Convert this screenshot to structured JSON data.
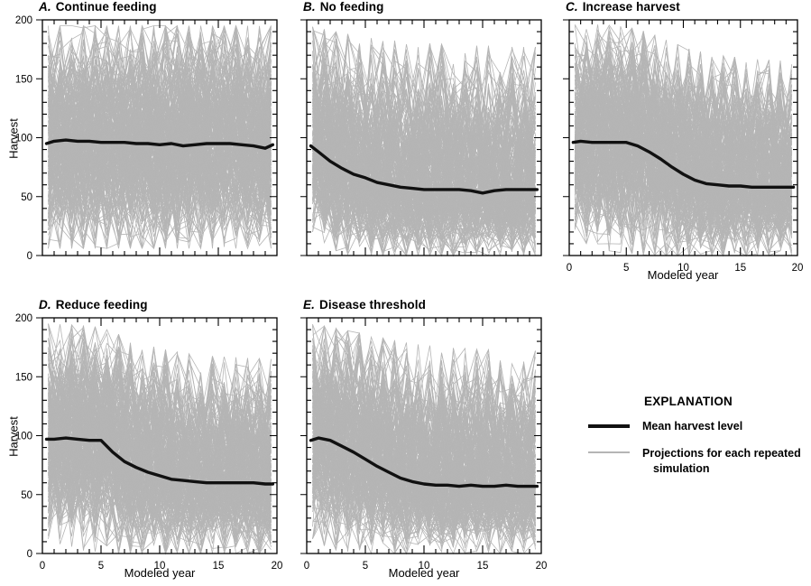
{
  "figure": {
    "y_axis_label": "Harvest",
    "x_axis_label": "Modeled year",
    "axes": {
      "x_ticks": [
        0,
        5,
        10,
        15,
        20
      ],
      "y_ticks": [
        0,
        50,
        100,
        150,
        200
      ],
      "x_range": [
        0,
        20
      ],
      "y_range": [
        0,
        200
      ],
      "grid": false
    },
    "colors": {
      "mean_line": "#111111",
      "simulation_line": "#b5b5b5",
      "axis": "#000000",
      "background": "#ffffff"
    }
  },
  "legend": {
    "heading": "EXPLANATION",
    "items": [
      {
        "label": "Mean harvest level",
        "style": "thick-black-line",
        "label_line1": "Mean harvest level",
        "label_line2": ""
      },
      {
        "label": "Projections for each repeated simulation",
        "style": "thin-gray-line",
        "label_line1": "Projections for each repeated",
        "label_line2": "simulation"
      }
    ]
  },
  "chart_data": [
    {
      "type": "line",
      "letter": "A.",
      "title": "Continue feeding",
      "xlabel": "Modeled year",
      "ylabel": "Harvest",
      "xlim": [
        0,
        20
      ],
      "ylim": [
        0,
        200
      ],
      "years": [
        0,
        1,
        2,
        3,
        4,
        5,
        6,
        7,
        8,
        9,
        10,
        11,
        12,
        13,
        14,
        15,
        16,
        17,
        18,
        19,
        20
      ],
      "mean_harvest": [
        95,
        97,
        98,
        97,
        97,
        96,
        96,
        96,
        95,
        95,
        94,
        95,
        93,
        94,
        95,
        95,
        95,
        94,
        93,
        91,
        94
      ],
      "sim_band_top": [
        195,
        195,
        195,
        195,
        195,
        195,
        195,
        195,
        195,
        195,
        195,
        195,
        195,
        195,
        195,
        195,
        195,
        195,
        195,
        195,
        195
      ],
      "sim_band_bottom": [
        6,
        6,
        6,
        6,
        6,
        6,
        6,
        6,
        6,
        6,
        6,
        6,
        6,
        6,
        6,
        6,
        6,
        6,
        6,
        6,
        6
      ]
    },
    {
      "type": "line",
      "letter": "B.",
      "title": "No feeding",
      "xlabel": "Modeled year",
      "ylabel": "Harvest",
      "xlim": [
        0,
        20
      ],
      "ylim": [
        0,
        200
      ],
      "years": [
        0,
        1,
        2,
        3,
        4,
        5,
        6,
        7,
        8,
        9,
        10,
        11,
        12,
        13,
        14,
        15,
        16,
        17,
        18,
        19,
        20
      ],
      "mean_harvest": [
        93,
        88,
        80,
        74,
        69,
        66,
        62,
        60,
        58,
        57,
        56,
        56,
        56,
        56,
        55,
        53,
        55,
        56,
        56,
        56,
        56
      ],
      "sim_band_top": [
        195,
        193,
        191,
        189,
        187,
        185,
        184,
        183,
        182,
        181,
        180,
        180,
        179,
        179,
        178,
        178,
        178,
        177,
        177,
        177,
        177
      ],
      "sim_band_bottom": [
        25,
        15,
        6,
        2,
        0,
        0,
        0,
        0,
        0,
        0,
        0,
        0,
        0,
        0,
        0,
        0,
        0,
        0,
        0,
        0,
        0
      ]
    },
    {
      "type": "line",
      "letter": "C.",
      "title": "Increase harvest",
      "xlabel": "Modeled year",
      "ylabel": "Harvest",
      "xlim": [
        0,
        20
      ],
      "ylim": [
        0,
        200
      ],
      "years": [
        0,
        1,
        2,
        3,
        4,
        5,
        6,
        7,
        8,
        9,
        10,
        11,
        12,
        13,
        14,
        15,
        16,
        17,
        18,
        19,
        20
      ],
      "mean_harvest": [
        96,
        97,
        96,
        96,
        96,
        96,
        93,
        88,
        82,
        75,
        69,
        64,
        61,
        60,
        59,
        59,
        58,
        58,
        58,
        58,
        58
      ],
      "sim_band_top": [
        196,
        196,
        196,
        196,
        195,
        194,
        192,
        189,
        185,
        181,
        177,
        174,
        172,
        170,
        169,
        168,
        167,
        166,
        166,
        165,
        165
      ],
      "sim_band_bottom": [
        18,
        12,
        8,
        5,
        3,
        2,
        1,
        0,
        0,
        0,
        0,
        0,
        0,
        0,
        0,
        0,
        0,
        0,
        0,
        0,
        0
      ]
    },
    {
      "type": "line",
      "letter": "D.",
      "title": "Reduce feeding",
      "xlabel": "Modeled year",
      "ylabel": "Harvest",
      "xlim": [
        0,
        20
      ],
      "ylim": [
        0,
        200
      ],
      "years": [
        0,
        1,
        2,
        3,
        4,
        5,
        6,
        7,
        8,
        9,
        10,
        11,
        12,
        13,
        14,
        15,
        16,
        17,
        18,
        19,
        20
      ],
      "mean_harvest": [
        97,
        97,
        98,
        97,
        96,
        96,
        86,
        78,
        73,
        69,
        66,
        63,
        62,
        61,
        60,
        60,
        60,
        60,
        60,
        59,
        59
      ],
      "sim_band_top": [
        195,
        195,
        194,
        194,
        193,
        192,
        188,
        184,
        180,
        177,
        174,
        172,
        170,
        169,
        168,
        167,
        167,
        166,
        166,
        165,
        165
      ],
      "sim_band_bottom": [
        14,
        10,
        6,
        3,
        2,
        1,
        0,
        0,
        0,
        0,
        0,
        0,
        0,
        0,
        0,
        0,
        0,
        0,
        0,
        0,
        0
      ]
    },
    {
      "type": "line",
      "letter": "E.",
      "title": "Disease threshold",
      "xlabel": "Modeled year",
      "ylabel": "Harvest",
      "xlim": [
        0,
        20
      ],
      "ylim": [
        0,
        200
      ],
      "years": [
        0,
        1,
        2,
        3,
        4,
        5,
        6,
        7,
        8,
        9,
        10,
        11,
        12,
        13,
        14,
        15,
        16,
        17,
        18,
        19,
        20
      ],
      "mean_harvest": [
        96,
        98,
        96,
        91,
        86,
        80,
        74,
        69,
        64,
        61,
        59,
        58,
        58,
        57,
        58,
        57,
        57,
        58,
        57,
        57,
        57
      ],
      "sim_band_top": [
        195,
        194,
        192,
        190,
        188,
        186,
        184,
        182,
        180,
        178,
        177,
        176,
        175,
        174,
        174,
        173,
        173,
        172,
        172,
        172,
        172
      ],
      "sim_band_bottom": [
        16,
        9,
        4,
        2,
        1,
        0,
        0,
        0,
        0,
        0,
        0,
        0,
        0,
        0,
        0,
        0,
        0,
        0,
        0,
        0,
        0
      ]
    }
  ]
}
